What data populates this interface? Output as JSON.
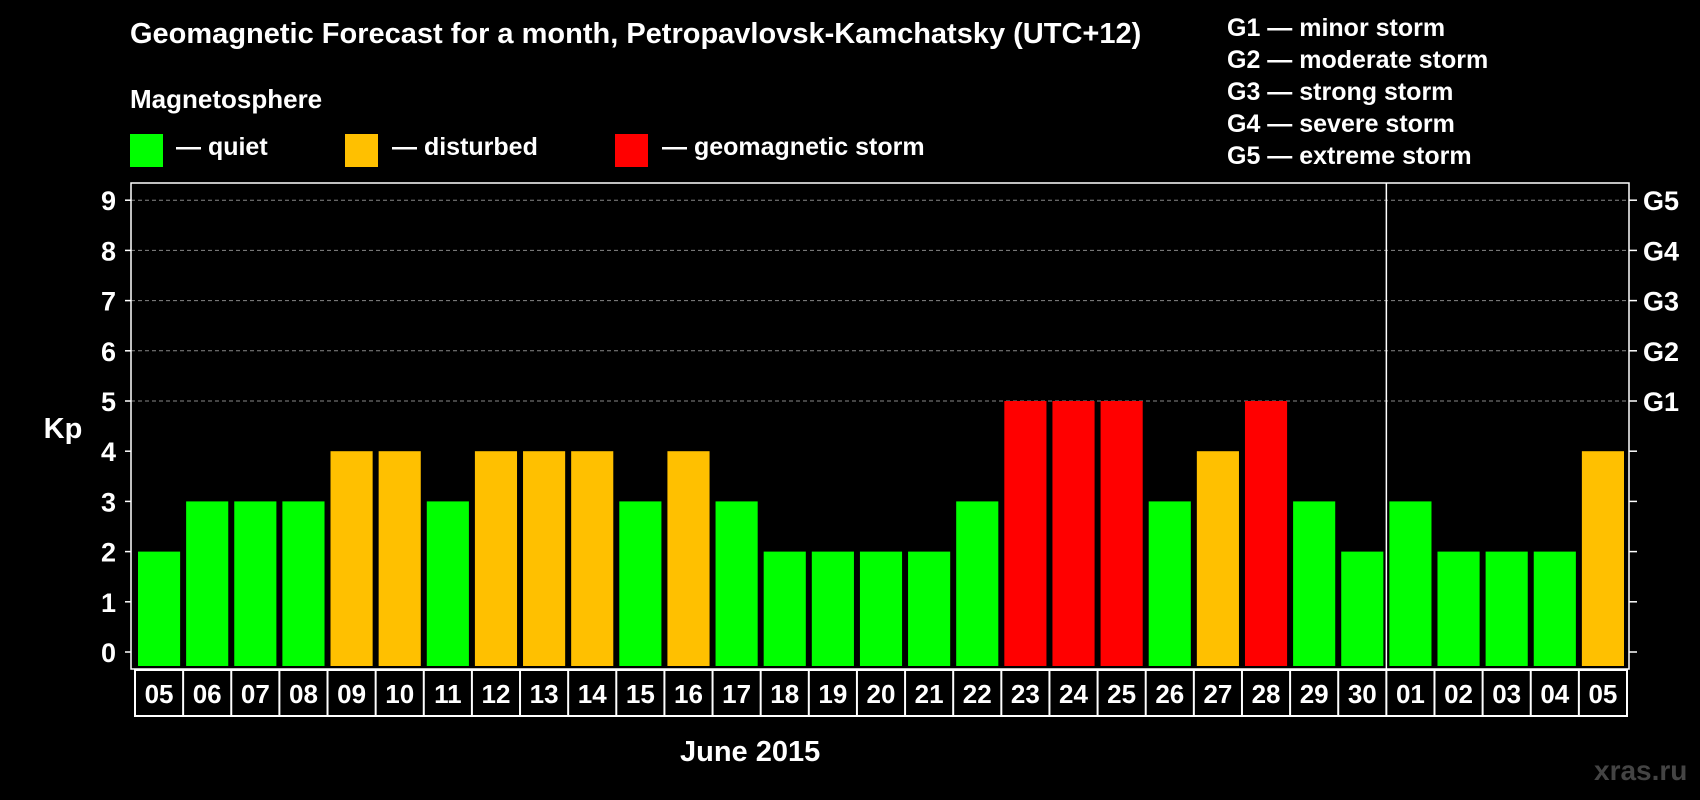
{
  "chart_data": {
    "type": "bar",
    "title": "Geomagnetic Forecast for a month, Petropavlovsk-Kamchatsky (UTC+12)",
    "subtitle": "Magnetosphere",
    "ylabel": "Kp",
    "xlabel": "June 2015",
    "ylim": [
      0,
      9
    ],
    "y_ticks": [
      "0",
      "1",
      "2",
      "3",
      "4",
      "5",
      "6",
      "7",
      "8",
      "9"
    ],
    "right_ticks": [
      {
        "value": 5,
        "label": "G1"
      },
      {
        "value": 6,
        "label": "G2"
      },
      {
        "value": 7,
        "label": "G3"
      },
      {
        "value": 8,
        "label": "G4"
      },
      {
        "value": 9,
        "label": "G5"
      }
    ],
    "categories": [
      "05",
      "06",
      "07",
      "08",
      "09",
      "10",
      "11",
      "12",
      "13",
      "14",
      "15",
      "16",
      "17",
      "18",
      "19",
      "20",
      "21",
      "22",
      "23",
      "24",
      "25",
      "26",
      "27",
      "28",
      "29",
      "30",
      "01",
      "02",
      "03",
      "04",
      "05"
    ],
    "values": [
      2,
      3,
      3,
      3,
      4,
      4,
      3,
      4,
      4,
      4,
      3,
      4,
      3,
      2,
      2,
      2,
      2,
      3,
      5,
      5,
      5,
      3,
      4,
      5,
      3,
      2,
      3,
      2,
      2,
      2,
      4
    ],
    "month_divider_after_index": 25,
    "status_colors": {
      "quiet": "#00ff00",
      "disturbed": "#ffc000",
      "storm": "#ff0000"
    },
    "status_thresholds": {
      "disturbed": 4,
      "storm": 5
    },
    "legend": [
      {
        "key": "quiet",
        "label": "— quiet"
      },
      {
        "key": "disturbed",
        "label": "— disturbed"
      },
      {
        "key": "storm",
        "label": "— geomagnetic storm"
      }
    ],
    "g_legend": [
      "G1 — minor storm",
      "G2 — moderate storm",
      "G3 — strong storm",
      "G4 — severe storm",
      "G5 — extreme storm"
    ]
  },
  "source": "xras.ru"
}
